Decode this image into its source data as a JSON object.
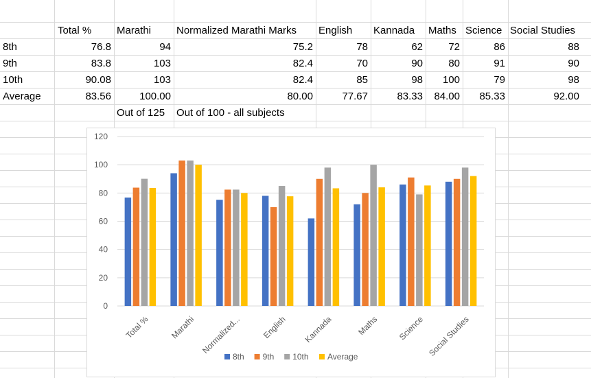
{
  "sheet": {
    "headers": [
      "Total %",
      "Marathi",
      "Normalized Marathi Marks",
      "English",
      "Kannada",
      "Maths",
      "Science",
      "Social Studies"
    ],
    "rows": [
      {
        "label": "8th",
        "values": [
          "76.8",
          "94",
          "75.2",
          "78",
          "62",
          "72",
          "86",
          "88"
        ]
      },
      {
        "label": "9th",
        "values": [
          "83.8",
          "103",
          "82.4",
          "70",
          "90",
          "80",
          "91",
          "90"
        ]
      },
      {
        "label": "10th",
        "values": [
          "90.08",
          "103",
          "82.4",
          "85",
          "98",
          "100",
          "79",
          "98"
        ]
      },
      {
        "label": "Average",
        "values": [
          "83.56",
          "100.00",
          "80.00",
          "77.67",
          "83.33",
          "84.00",
          "85.33",
          "92.00"
        ]
      }
    ],
    "notes": {
      "marathi": "Out of 125",
      "normalized": "Out of 100 - all subjects"
    }
  },
  "chart_data": {
    "type": "bar",
    "categories": [
      "Total %",
      "Marathi",
      "Normalized...",
      "English",
      "Kannada",
      "Maths",
      "Science",
      "Social Studies"
    ],
    "series": [
      {
        "name": "8th",
        "color": "#4472c4",
        "values": [
          76.8,
          94,
          75.2,
          78,
          62,
          72,
          86,
          88
        ]
      },
      {
        "name": "9th",
        "color": "#ed7d31",
        "values": [
          83.8,
          103,
          82.4,
          70,
          90,
          80,
          91,
          90
        ]
      },
      {
        "name": "10th",
        "color": "#a5a5a5",
        "values": [
          90.08,
          103,
          82.4,
          85,
          98,
          100,
          79,
          98
        ]
      },
      {
        "name": "Average",
        "color": "#ffc000",
        "values": [
          83.56,
          100,
          80,
          77.67,
          83.33,
          84,
          85.33,
          92
        ]
      }
    ],
    "ylim": [
      0,
      120
    ],
    "yticks": [
      "0",
      "20",
      "40",
      "60",
      "80",
      "100",
      "120"
    ],
    "grid": true,
    "legend": "bottom",
    "title": "",
    "xlabel": "",
    "ylabel": ""
  }
}
